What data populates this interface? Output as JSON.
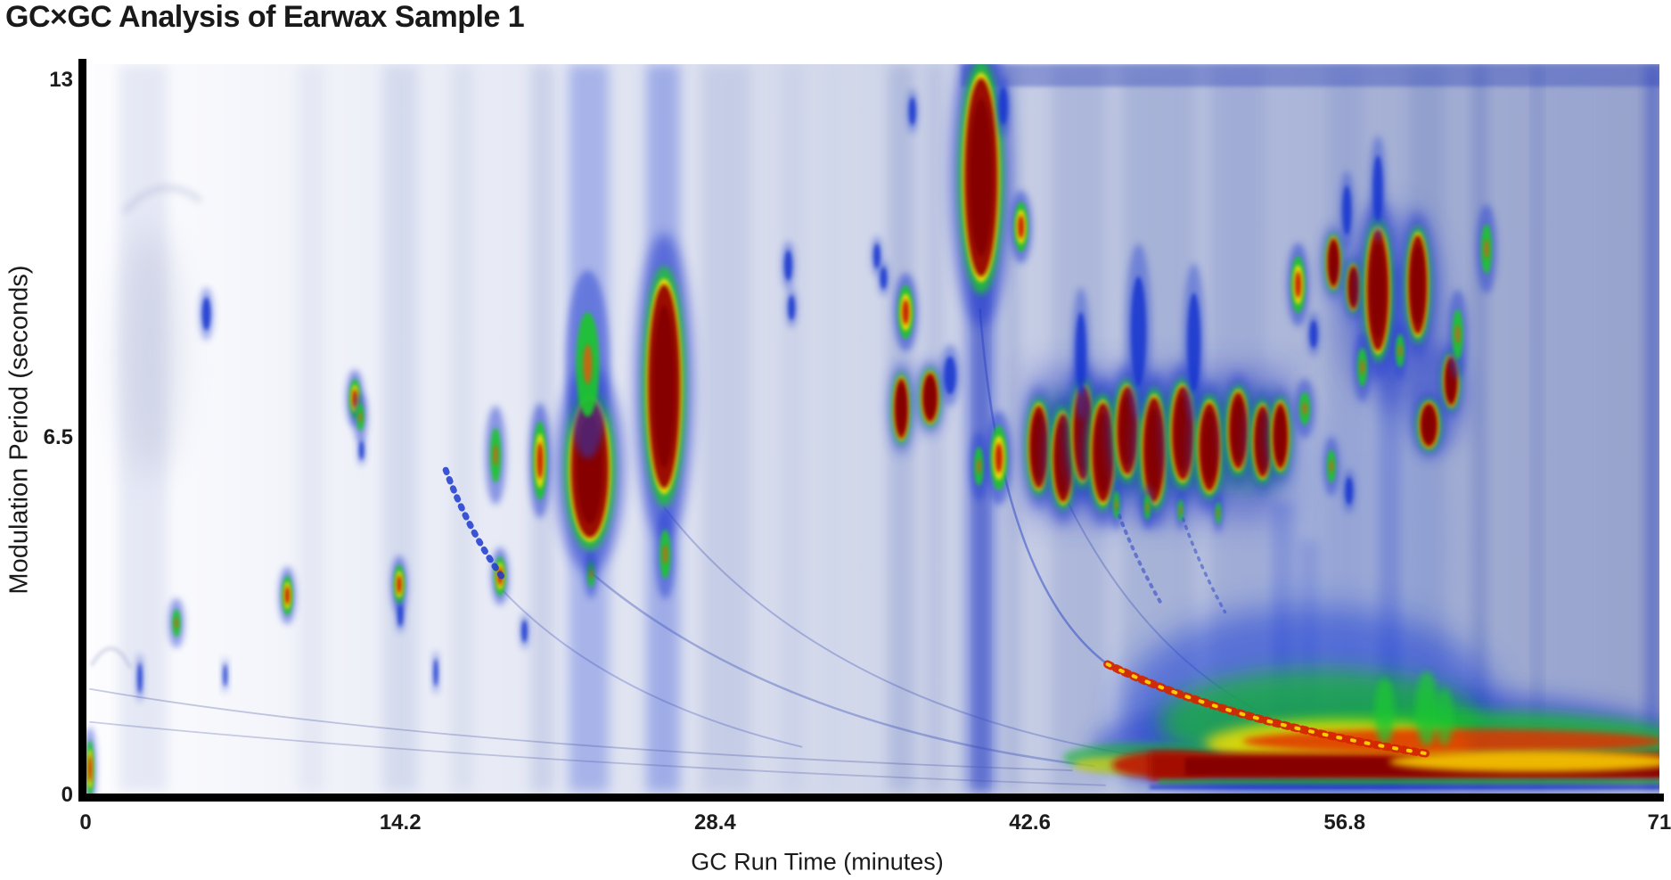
{
  "title": "GC×GC Analysis of Earwax Sample 1",
  "x_axis": {
    "label": "GC Run Time (minutes)",
    "ticks": [
      "0",
      "14.2",
      "28.4",
      "42.6",
      "56.8",
      "71"
    ],
    "tick_values": [
      0,
      14.2,
      28.4,
      42.6,
      56.8,
      71
    ],
    "range": [
      0,
      71
    ]
  },
  "y_axis": {
    "label": "Modulation Period (seconds)",
    "ticks": [
      "0",
      "6.5",
      "13"
    ],
    "tick_values": [
      0,
      6.5,
      13
    ],
    "range": [
      0,
      13
    ]
  },
  "chart_data": {
    "type": "heatmap",
    "title": "GC×GC Analysis of Earwax Sample 1",
    "xlabel": "GC Run Time (minutes)",
    "ylabel": "Modulation Period (seconds)",
    "xlim": [
      0,
      71
    ],
    "ylim": [
      0,
      13
    ],
    "grid": false,
    "legend": "none",
    "colormap_colors": [
      "#ffffff",
      "#2741d6",
      "#1dc52f",
      "#ffe000",
      "#e23206",
      "#860400"
    ],
    "description": "Two-dimensional gas chromatogram; intensity from white (low) through blue, green, yellow to dark red (high). Peak list gives approximate retention coordinates.",
    "background_gradient": [
      [
        0,
        "#fdfdff"
      ],
      [
        0.08,
        "#f7f8fc"
      ],
      [
        0.18,
        "#eef0f8"
      ],
      [
        0.28,
        "#e6e9f4"
      ],
      [
        0.36,
        "#dee2f0"
      ],
      [
        0.44,
        "#d6dbec"
      ],
      [
        0.52,
        "#cfd5e9"
      ],
      [
        0.6,
        "#c5cce4"
      ],
      [
        0.68,
        "#b9c2df"
      ],
      [
        0.76,
        "#adb7d9"
      ],
      [
        0.84,
        "#a4afd4"
      ],
      [
        0.92,
        "#9da8d0"
      ],
      [
        1,
        "#97a2cc"
      ]
    ],
    "peaks_fields": "[minutes, seconds, width_min, height_sec, intensity(1=blue,2=green,3=red-small,4=hot)]",
    "peaks": [
      [
        0.2,
        0.45,
        0.28,
        0.8,
        3
      ],
      [
        5.45,
        8.72,
        0.38,
        0.6,
        1
      ],
      [
        12.15,
        7.18,
        0.4,
        0.55,
        3
      ],
      [
        12.4,
        6.84,
        0.35,
        0.5,
        2
      ],
      [
        12.45,
        6.24,
        0.22,
        0.35,
        1
      ],
      [
        4.1,
        3.1,
        0.38,
        0.5,
        2
      ],
      [
        9.1,
        3.6,
        0.38,
        0.55,
        3
      ],
      [
        14.15,
        3.8,
        0.38,
        0.55,
        3
      ],
      [
        14.2,
        3.24,
        0.25,
        0.4,
        1
      ],
      [
        2.45,
        2.1,
        0.2,
        0.55,
        1
      ],
      [
        6.3,
        2.15,
        0.16,
        0.4,
        1
      ],
      [
        15.8,
        2.2,
        0.18,
        0.5,
        1
      ],
      [
        18.5,
        6.15,
        0.5,
        1.0,
        2
      ],
      [
        20.5,
        6.05,
        0.5,
        1.1,
        3
      ],
      [
        18.7,
        3.95,
        0.4,
        0.55,
        3
      ],
      [
        22.8,
        4.0,
        0.35,
        0.5,
        2
      ],
      [
        19.8,
        2.95,
        0.25,
        0.4,
        1
      ],
      [
        22.75,
        5.9,
        1.7,
        2.5,
        4
      ],
      [
        22.65,
        7.8,
        1.05,
        1.9,
        2
      ],
      [
        26.1,
        7.4,
        1.45,
        3.7,
        4
      ],
      [
        26.15,
        4.35,
        0.5,
        0.9,
        2
      ],
      [
        40.4,
        11.2,
        1.5,
        3.6,
        4
      ],
      [
        42.2,
        10.3,
        0.5,
        0.7,
        3
      ],
      [
        41.4,
        12.5,
        0.4,
        0.7,
        1
      ],
      [
        37.3,
        12.4,
        0.3,
        0.5,
        1
      ],
      [
        31.7,
        9.6,
        0.35,
        0.55,
        1
      ],
      [
        31.85,
        8.83,
        0.3,
        0.45,
        1
      ],
      [
        35.7,
        9.77,
        0.3,
        0.45,
        1
      ],
      [
        36.0,
        9.37,
        0.3,
        0.4,
        1
      ],
      [
        37.0,
        8.75,
        0.55,
        0.75,
        3
      ],
      [
        36.8,
        7.0,
        0.62,
        1.1,
        4
      ],
      [
        38.1,
        7.2,
        0.7,
        0.9,
        4
      ],
      [
        39.0,
        7.6,
        0.55,
        0.7,
        1
      ],
      [
        40.3,
        5.95,
        0.45,
        0.7,
        2
      ],
      [
        41.2,
        6.1,
        0.6,
        0.9,
        3
      ],
      [
        43.0,
        6.3,
        0.85,
        1.5,
        4
      ],
      [
        44.1,
        6.1,
        0.9,
        1.6,
        4
      ],
      [
        45.0,
        6.55,
        0.9,
        1.7,
        4
      ],
      [
        45.9,
        6.2,
        1.0,
        1.8,
        4
      ],
      [
        47.0,
        6.6,
        0.95,
        1.6,
        4
      ],
      [
        48.2,
        6.25,
        1.0,
        1.9,
        4
      ],
      [
        49.5,
        6.55,
        1.0,
        1.7,
        4
      ],
      [
        50.7,
        6.3,
        0.95,
        1.6,
        4
      ],
      [
        52.0,
        6.6,
        0.85,
        1.4,
        4
      ],
      [
        53.1,
        6.4,
        0.8,
        1.3,
        4
      ],
      [
        53.9,
        6.5,
        0.7,
        1.2,
        4
      ],
      [
        44.9,
        8.0,
        0.5,
        1.5,
        1
      ],
      [
        47.5,
        8.4,
        0.7,
        2.0,
        1
      ],
      [
        50.0,
        8.2,
        0.6,
        1.8,
        1
      ],
      [
        46.5,
        5.25,
        0.3,
        0.5,
        2
      ],
      [
        47.9,
        5.2,
        0.3,
        0.45,
        2
      ],
      [
        49.4,
        5.15,
        0.25,
        0.4,
        2
      ],
      [
        51.1,
        5.1,
        0.25,
        0.4,
        2
      ],
      [
        54.7,
        9.25,
        0.5,
        0.8,
        3
      ],
      [
        56.3,
        9.65,
        0.55,
        0.9,
        4
      ],
      [
        57.2,
        9.2,
        0.5,
        0.8,
        4
      ],
      [
        58.3,
        9.15,
        1.0,
        2.2,
        4
      ],
      [
        60.1,
        9.25,
        0.85,
        1.8,
        4
      ],
      [
        61.6,
        7.5,
        0.6,
        0.9,
        4
      ],
      [
        60.6,
        6.7,
        0.8,
        0.8,
        4
      ],
      [
        59.3,
        8.05,
        0.4,
        0.6,
        2
      ],
      [
        57.6,
        7.75,
        0.45,
        0.7,
        2
      ],
      [
        61.9,
        8.35,
        0.5,
        0.9,
        2
      ],
      [
        63.2,
        9.9,
        0.5,
        0.9,
        2
      ],
      [
        55.4,
        8.35,
        0.35,
        0.5,
        1
      ],
      [
        56.9,
        10.6,
        0.4,
        0.9,
        1
      ],
      [
        58.3,
        11.0,
        0.45,
        1.2,
        1
      ],
      [
        55.0,
        7.0,
        0.5,
        0.6,
        2
      ],
      [
        56.2,
        5.95,
        0.4,
        0.6,
        2
      ],
      [
        57.0,
        5.5,
        0.35,
        0.5,
        1
      ]
    ],
    "streaks_fields": "vertical haze columns {m:center_min, w:width_min, c:color, o:opacity, s0/s1 optional top/bottom seconds}",
    "streaks": [
      {
        "m": 2.6,
        "w": 2.2,
        "c": "#d4daee",
        "o": 0.55
      },
      {
        "m": 10.2,
        "w": 1.2,
        "c": "#d9deef",
        "o": 0.5
      },
      {
        "m": 14.2,
        "w": 1.6,
        "c": "#c2cbe6",
        "o": 0.55
      },
      {
        "m": 17.0,
        "w": 1.0,
        "c": "#cdd4ea",
        "o": 0.5
      },
      {
        "m": 20.6,
        "w": 1.05,
        "c": "#b7c0e1",
        "o": 0.55
      },
      {
        "m": 22.7,
        "w": 1.8,
        "c": "#3350d8",
        "o": 0.33
      },
      {
        "m": 26.05,
        "w": 1.5,
        "c": "#3350d8",
        "o": 0.36
      },
      {
        "m": 28.9,
        "w": 2.2,
        "c": "#b9c2e2",
        "o": 0.6
      },
      {
        "m": 31.9,
        "w": 1.0,
        "c": "#c3cbe6",
        "o": 0.5
      },
      {
        "m": 33.7,
        "w": 0.7,
        "c": "#cdd4eb",
        "o": 0.45
      },
      {
        "m": 36.8,
        "w": 1.2,
        "c": "#9aa7d4",
        "o": 0.55
      },
      {
        "m": 38.3,
        "w": 0.8,
        "c": "#a8b3da",
        "o": 0.5
      },
      {
        "m": 40.4,
        "w": 1.35,
        "c": "#2740cf",
        "o": 0.5
      },
      {
        "m": 40.4,
        "w": 0.4,
        "c": "#1b2fb0",
        "o": 0.45
      },
      {
        "m": 41.8,
        "w": 0.65,
        "c": "#8d9bce",
        "o": 0.45
      },
      {
        "m": 44.8,
        "w": 2.4,
        "c": "#97a4d2",
        "o": 0.45
      },
      {
        "m": 48.4,
        "w": 3.2,
        "c": "#92a0cf",
        "o": 0.45
      },
      {
        "m": 52.0,
        "w": 2.4,
        "c": "#8e9cd0",
        "o": 0.45
      },
      {
        "m": 54.0,
        "w": 1.05,
        "c": "#2f49d0",
        "o": 0.35,
        "s0": 5.3,
        "s1": 0.15
      },
      {
        "m": 55.2,
        "w": 0.9,
        "c": "#2f49d0",
        "o": 0.3,
        "s0": 4.6,
        "s1": 0.15
      },
      {
        "m": 56.85,
        "w": 1.6,
        "c": "#8f9dd0",
        "o": 0.5
      },
      {
        "m": 58.85,
        "w": 1.05,
        "c": "#2c45cc",
        "o": 0.45,
        "s0": 9.6,
        "s1": 0.08
      },
      {
        "m": 60.5,
        "w": 1.6,
        "c": "#7f90c8",
        "o": 0.45
      },
      {
        "m": 62.9,
        "w": 0.56,
        "c": "#5a6fc0",
        "o": 0.45
      },
      {
        "m": 65.5,
        "w": 0.32,
        "c": "#4c62bb",
        "o": 0.4
      },
      {
        "m": 67.3,
        "w": 2.4,
        "c": "#9aa6d2",
        "o": 0.45
      },
      {
        "m": 70.7,
        "w": 0.56,
        "c": "#2038c0",
        "o": 0.5
      }
    ],
    "arcs_fields": "wrap-around tails; quadratic curves p=[[m,s]x3]; z=1 drawn above peaks; d=dash",
    "arcs": [
      {
        "p": [
          [
            22.7,
            4.05
          ],
          [
            31.0,
            1.2
          ],
          [
            45.5,
            0.5
          ]
        ],
        "c": "#3a4fb5",
        "w": 2.5,
        "o": 0.38,
        "d": "",
        "z": 0
      },
      {
        "p": [
          [
            26.1,
            5.2
          ],
          [
            33.5,
            1.4
          ],
          [
            49.3,
            0.58
          ]
        ],
        "c": "#3a4fb5",
        "w": 2,
        "o": 0.32,
        "d": "",
        "z": 0
      },
      {
        "p": [
          [
            44.3,
            5.3
          ],
          [
            47.8,
            2.5
          ],
          [
            53.4,
            1.4
          ]
        ],
        "c": "#3a4fb5",
        "w": 2,
        "o": 0.35,
        "d": "",
        "z": 0
      },
      {
        "p": [
          [
            0.2,
            1.9
          ],
          [
            16.0,
            0.8
          ],
          [
            44.5,
            0.42
          ]
        ],
        "c": "#47549f",
        "w": 1.8,
        "o": 0.3,
        "d": "",
        "z": 0
      },
      {
        "p": [
          [
            0.2,
            1.3
          ],
          [
            20.0,
            0.5
          ],
          [
            46.0,
            0.15
          ]
        ],
        "c": "#47549f",
        "w": 1.8,
        "o": 0.28,
        "d": "",
        "z": 0
      },
      {
        "p": [
          [
            18.8,
            3.7
          ],
          [
            23.5,
            1.7
          ],
          [
            32.3,
            0.85
          ]
        ],
        "c": "#3a4fb5",
        "w": 2,
        "o": 0.3,
        "d": "",
        "z": 0
      },
      {
        "p": [
          [
            1.8,
            10.6
          ],
          [
            3.4,
            11.3
          ],
          [
            5.1,
            10.8
          ]
        ],
        "c": "#9aa3c8",
        "w": 8,
        "o": 0.28,
        "d": "",
        "z": 0,
        "b": 4
      },
      {
        "p": [
          [
            0.3,
            2.35
          ],
          [
            1.2,
            2.95
          ],
          [
            2.0,
            2.3
          ]
        ],
        "c": "#8e97c0",
        "w": 4,
        "o": 0.35,
        "d": "",
        "z": 0,
        "b": 2
      },
      {
        "p": [
          [
            40.35,
            8.8
          ],
          [
            41.3,
            3.8
          ],
          [
            46.1,
            2.35
          ]
        ],
        "c": "#2a44c4",
        "w": 2.5,
        "o": 0.5,
        "d": "",
        "z": 0
      },
      {
        "p": [
          [
            46.5,
            5.2
          ],
          [
            47.3,
            4.3
          ],
          [
            48.6,
            3.4
          ]
        ],
        "c": "#2c44c8",
        "w": 4,
        "o": 0.55,
        "d": "2.5 7",
        "z": 0
      },
      {
        "p": [
          [
            49.5,
            5.0
          ],
          [
            50.3,
            4.1
          ],
          [
            51.4,
            3.3
          ]
        ],
        "c": "#2c44c8",
        "w": 3.5,
        "o": 0.5,
        "d": "2.5 7",
        "z": 0
      },
      {
        "p": [
          [
            16.25,
            5.88
          ],
          [
            17.3,
            4.75
          ],
          [
            18.95,
            3.85
          ]
        ],
        "c": "#1c39cf",
        "w": 7,
        "o": 0.85,
        "d": "2.5 8.5",
        "z": 1
      },
      {
        "p": [
          [
            46.1,
            2.35
          ],
          [
            51.5,
            1.3
          ],
          [
            60.6,
            0.72
          ]
        ],
        "c": "#d42600",
        "w": 9,
        "o": 0.95,
        "d": "4.5 6",
        "z": 1
      },
      {
        "p": [
          [
            46.1,
            2.35
          ],
          [
            51.5,
            1.3
          ],
          [
            60.6,
            0.72
          ]
        ],
        "c": "#ffdf00",
        "w": 4,
        "o": 0.9,
        "d": "3 13",
        "z": 1
      }
    ],
    "regions_fields": "soft glow ellipses {m,s,w,h} or rects {r:[m0,sTop,m1,sBottom]}; b=blur px",
    "regions": [
      {
        "m": 2.9,
        "s": 8.0,
        "w": 2.6,
        "h": 4.5,
        "c": "#b3b9d6",
        "o": 0.4,
        "b": 16
      },
      {
        "r": [
          42.6,
          7.7,
          54.3,
          5.0
        ],
        "c": "#2036c8",
        "o": 0.42,
        "b": 16
      },
      {
        "r": [
          43.0,
          7.15,
          53.9,
          5.6
        ],
        "c": "#18c02c",
        "o": 0.45,
        "b": 10
      },
      {
        "m": 58.9,
        "s": 8.8,
        "w": 4.6,
        "h": 3.6,
        "c": "#2038cc",
        "o": 0.4,
        "b": 16
      },
      {
        "m": 60.9,
        "s": 7.2,
        "w": 2.8,
        "h": 2.0,
        "c": "#2038cc",
        "o": 0.38,
        "b": 12
      },
      {
        "m": 57.5,
        "s": 4.5,
        "w": 8,
        "h": 5,
        "c": "#8ea0da",
        "o": 0.4,
        "b": 18
      },
      {
        "m": 55.2,
        "s": 1.6,
        "w": 17,
        "h": 3.6,
        "c": "#1e3fd6",
        "o": 0.55,
        "b": 18
      },
      {
        "m": 58.9,
        "s": 0.85,
        "w": 27,
        "h": 2.1,
        "c": "#1c38cc",
        "o": 0.55,
        "b": 14
      },
      {
        "m": 55.7,
        "s": 1.3,
        "w": 14.5,
        "h": 1.9,
        "c": "#17bd2b",
        "o": 0.7,
        "b": 10
      },
      {
        "m": 62.1,
        "s": 0.9,
        "w": 21,
        "h": 1.2,
        "c": "#17bd2b",
        "o": 0.75,
        "b": 8
      },
      {
        "m": 56.5,
        "s": 0.9,
        "w": 12,
        "h": 0.85,
        "c": "#ffe000",
        "o": 0.8,
        "b": 6
      },
      {
        "m": 47.6,
        "s": 0.65,
        "w": 7,
        "h": 0.55,
        "c": "#19b62e",
        "o": 0.6,
        "b": 5
      },
      {
        "m": 46.8,
        "s": 0.52,
        "w": 4.5,
        "h": 0.32,
        "c": "#ffd800",
        "o": 0.55,
        "b": 4
      },
      {
        "m": 48.8,
        "s": 0.52,
        "w": 5,
        "h": 0.5,
        "c": "#c01000",
        "o": 0.85,
        "b": 4
      },
      {
        "r": [
          48.0,
          0.74,
          71.3,
          0.26
        ],
        "c": "#a30d00",
        "o": 1,
        "b": 5
      },
      {
        "r": [
          49.6,
          0.65,
          71.3,
          0.33
        ],
        "c": "#860400",
        "o": 1,
        "b": 3
      },
      {
        "m": 61.7,
        "s": 0.95,
        "w": 19,
        "h": 0.45,
        "c": "#e23206",
        "o": 0.85,
        "b": 5
      },
      {
        "m": 65.3,
        "s": 0.58,
        "w": 13,
        "h": 0.38,
        "c": "#ffd800",
        "o": 0.85,
        "b": 4
      },
      {
        "r": [
          48.4,
          0.26,
          71.3,
          0.16
        ],
        "c": "#19b62e",
        "o": 0.65,
        "b": 3
      },
      {
        "r": [
          48.0,
          0.17,
          71.3,
          0.05
        ],
        "c": "#2038c8",
        "o": 0.6,
        "b": 3
      },
      {
        "m": 58.6,
        "s": 1.5,
        "w": 0.9,
        "h": 1.2,
        "c": "#1ec832",
        "o": 0.75,
        "b": 5
      },
      {
        "m": 60.5,
        "s": 1.55,
        "w": 1.0,
        "h": 1.35,
        "c": "#1ec832",
        "o": 0.75,
        "b": 5
      },
      {
        "m": 61.3,
        "s": 1.4,
        "w": 0.8,
        "h": 1.05,
        "c": "#1ec832",
        "o": 0.65,
        "b": 5
      },
      {
        "r": [
          48.0,
          0.05,
          71.3,
          0.0
        ],
        "c": "#ccd4ea",
        "o": 0.7,
        "b": 2
      },
      {
        "r": [
          39.5,
          13.25,
          71.3,
          12.85
        ],
        "c": "#2438b8",
        "o": 0.35,
        "b": 3
      }
    ]
  }
}
